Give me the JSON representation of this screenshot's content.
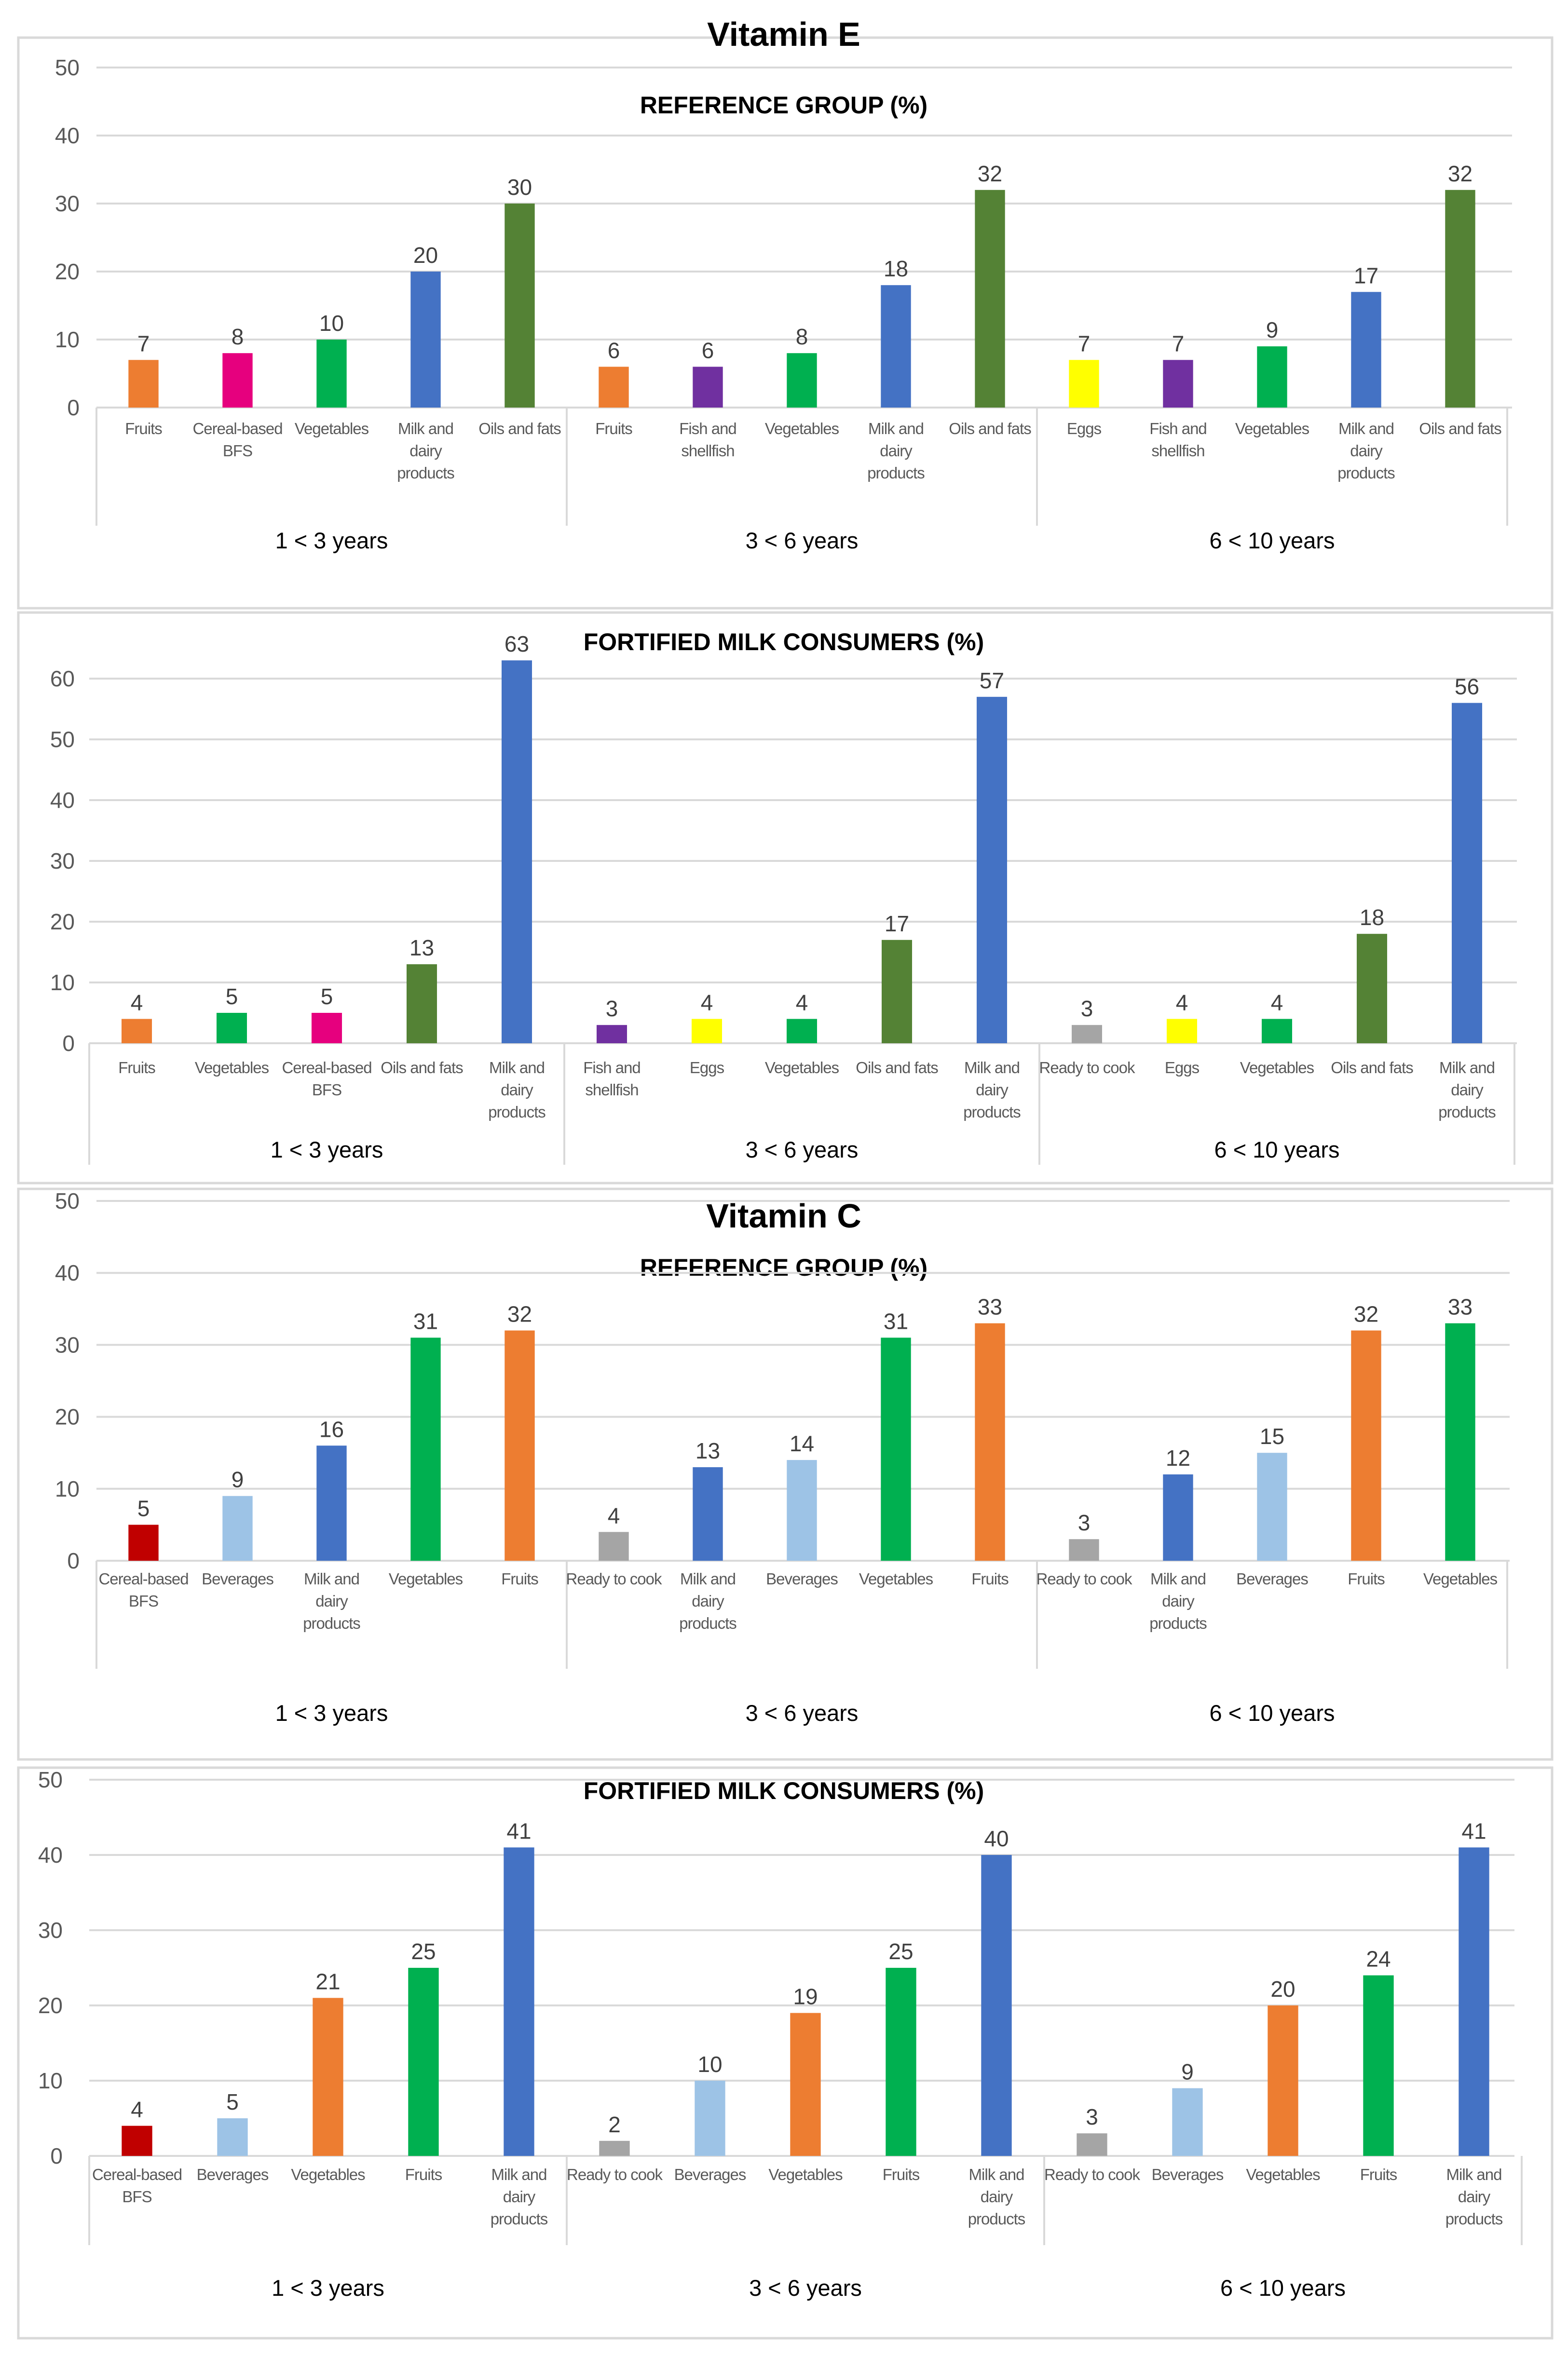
{
  "figure_titles": [
    "Vitamin E",
    "Vitamin C"
  ],
  "chart_data": [
    {
      "type": "bar",
      "section": "Vitamin E",
      "title": "REFERENCE GROUP (%)",
      "ylim": [
        0,
        50
      ],
      "yticks": [
        0,
        10,
        20,
        30,
        40,
        50
      ],
      "groups": [
        {
          "label": "1 < 3 years",
          "bars": [
            {
              "category": "Fruits",
              "value": 7,
              "color": "#ED7D31"
            },
            {
              "category": "Cereal-based BFS",
              "value": 8,
              "color": "#E6007E"
            },
            {
              "category": "Vegetables",
              "value": 10,
              "color": "#00B050"
            },
            {
              "category": "Milk and dairy products",
              "value": 20,
              "color": "#4472C4"
            },
            {
              "category": "Oils and fats",
              "value": 30,
              "color": "#548235"
            }
          ]
        },
        {
          "label": "3 < 6 years",
          "bars": [
            {
              "category": "Fruits",
              "value": 6,
              "color": "#ED7D31"
            },
            {
              "category": "Fish and shellfish",
              "value": 6,
              "color": "#7030A0"
            },
            {
              "category": "Vegetables",
              "value": 8,
              "color": "#00B050"
            },
            {
              "category": "Milk and dairy products",
              "value": 18,
              "color": "#4472C4"
            },
            {
              "category": "Oils and fats",
              "value": 32,
              "color": "#548235"
            }
          ]
        },
        {
          "label": "6 < 10 years",
          "bars": [
            {
              "category": "Eggs",
              "value": 7,
              "color": "#FFFF00"
            },
            {
              "category": "Fish and shellfish",
              "value": 7,
              "color": "#7030A0"
            },
            {
              "category": "Vegetables",
              "value": 9,
              "color": "#00B050"
            },
            {
              "category": "Milk and dairy products",
              "value": 17,
              "color": "#4472C4"
            },
            {
              "category": "Oils and fats",
              "value": 32,
              "color": "#548235"
            }
          ]
        }
      ]
    },
    {
      "type": "bar",
      "section": "Vitamin E",
      "title": "FORTIFIED MILK CONSUMERS (%)",
      "ylim": [
        0,
        60
      ],
      "yticks": [
        0,
        10,
        20,
        30,
        40,
        50,
        60
      ],
      "groups": [
        {
          "label": "1 < 3 years",
          "bars": [
            {
              "category": "Fruits",
              "value": 4,
              "color": "#ED7D31"
            },
            {
              "category": "Vegetables",
              "value": 5,
              "color": "#00B050"
            },
            {
              "category": "Cereal-based BFS",
              "value": 5,
              "color": "#E6007E"
            },
            {
              "category": "Oils and fats",
              "value": 13,
              "color": "#548235"
            },
            {
              "category": "Milk and dairy products",
              "value": 63,
              "color": "#4472C4"
            }
          ]
        },
        {
          "label": "3 < 6 years",
          "bars": [
            {
              "category": "Fish and shellfish",
              "value": 3,
              "color": "#7030A0"
            },
            {
              "category": "Eggs",
              "value": 4,
              "color": "#FFFF00"
            },
            {
              "category": "Vegetables",
              "value": 4,
              "color": "#00B050"
            },
            {
              "category": "Oils and fats",
              "value": 17,
              "color": "#548235"
            },
            {
              "category": "Milk and dairy products",
              "value": 57,
              "color": "#4472C4"
            }
          ]
        },
        {
          "label": "6 < 10 years",
          "bars": [
            {
              "category": "Ready to cook",
              "value": 3,
              "color": "#A5A5A5"
            },
            {
              "category": "Eggs",
              "value": 4,
              "color": "#FFFF00"
            },
            {
              "category": "Vegetables",
              "value": 4,
              "color": "#00B050"
            },
            {
              "category": "Oils and fats",
              "value": 18,
              "color": "#548235"
            },
            {
              "category": "Milk and dairy products",
              "value": 56,
              "color": "#4472C4"
            }
          ]
        }
      ]
    },
    {
      "type": "bar",
      "section": "Vitamin C",
      "title": "REFERENCE GROUP (%)",
      "ylim": [
        0,
        50
      ],
      "yticks": [
        0,
        10,
        20,
        30,
        40,
        50
      ],
      "groups": [
        {
          "label": "1 < 3 years",
          "bars": [
            {
              "category": "Cereal-based BFS",
              "value": 5,
              "color": "#C00000"
            },
            {
              "category": "Beverages",
              "value": 9,
              "color": "#9DC3E6"
            },
            {
              "category": "Milk and dairy products",
              "value": 16,
              "color": "#4472C4"
            },
            {
              "category": "Vegetables",
              "value": 31,
              "color": "#00B050"
            },
            {
              "category": "Fruits",
              "value": 32,
              "color": "#ED7D31"
            }
          ]
        },
        {
          "label": "3 < 6 years",
          "bars": [
            {
              "category": "Ready to cook",
              "value": 4,
              "color": "#A5A5A5"
            },
            {
              "category": "Milk and dairy products",
              "value": 13,
              "color": "#4472C4"
            },
            {
              "category": "Beverages",
              "value": 14,
              "color": "#9DC3E6"
            },
            {
              "category": "Vegetables",
              "value": 31,
              "color": "#00B050"
            },
            {
              "category": "Fruits",
              "value": 33,
              "color": "#ED7D31"
            }
          ]
        },
        {
          "label": "6 < 10 years",
          "bars": [
            {
              "category": "Ready to cook",
              "value": 3,
              "color": "#A5A5A5"
            },
            {
              "category": "Milk and dairy products",
              "value": 12,
              "color": "#4472C4"
            },
            {
              "category": "Beverages",
              "value": 15,
              "color": "#9DC3E6"
            },
            {
              "category": "Fruits",
              "value": 32,
              "color": "#ED7D31"
            },
            {
              "category": "Vegetables",
              "value": 33,
              "color": "#00B050"
            }
          ]
        }
      ]
    },
    {
      "type": "bar",
      "section": "Vitamin C",
      "title": "FORTIFIED MILK CONSUMERS (%)",
      "ylim": [
        0,
        50
      ],
      "yticks": [
        0,
        10,
        20,
        30,
        40,
        50
      ],
      "groups": [
        {
          "label": "1 < 3 years",
          "bars": [
            {
              "category": "Cereal-based BFS",
              "value": 4,
              "color": "#C00000"
            },
            {
              "category": "Beverages",
              "value": 5,
              "color": "#9DC3E6"
            },
            {
              "category": "Vegetables",
              "value": 21,
              "color": "#ED7D31"
            },
            {
              "category": "Fruits",
              "value": 25,
              "color": "#00B050"
            },
            {
              "category": "Milk and dairy products",
              "value": 41,
              "color": "#4472C4"
            }
          ]
        },
        {
          "label": "3 < 6 years",
          "bars": [
            {
              "category": "Ready to cook",
              "value": 2,
              "color": "#A5A5A5"
            },
            {
              "category": "Beverages",
              "value": 10,
              "color": "#9DC3E6"
            },
            {
              "category": "Vegetables",
              "value": 19,
              "color": "#ED7D31"
            },
            {
              "category": "Fruits",
              "value": 25,
              "color": "#00B050"
            },
            {
              "category": "Milk and dairy products",
              "value": 40,
              "color": "#4472C4"
            }
          ]
        },
        {
          "label": "6 < 10 years",
          "bars": [
            {
              "category": "Ready to cook",
              "value": 3,
              "color": "#A5A5A5"
            },
            {
              "category": "Beverages",
              "value": 9,
              "color": "#9DC3E6"
            },
            {
              "category": "Vegetables",
              "value": 20,
              "color": "#ED7D31"
            },
            {
              "category": "Fruits",
              "value": 24,
              "color": "#00B050"
            },
            {
              "category": "Milk and dairy products",
              "value": 41,
              "color": "#4472C4"
            }
          ]
        }
      ]
    }
  ]
}
